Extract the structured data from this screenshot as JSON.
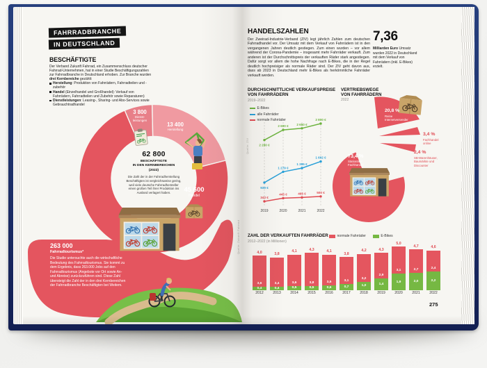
{
  "colors": {
    "coral": "#e4555f",
    "coral_light": "#f09aa1",
    "coral_mid": "#e87f88",
    "green": "#76b843",
    "blue": "#29a0d8",
    "red_accent": "#e04a52",
    "navy_cover": "#1e2f66",
    "page": "#f7f6f2"
  },
  "book": {
    "left_page": {
      "kicker_line1": "FAHRRADBRANCHE",
      "kicker_line2": "IN DEUTSCHLAND",
      "section_title": "BESCHÄFTIGTE",
      "intro_rich": [
        {
          "t": "Der Verband Zukunft Fahrrad, ein Zusammenschluss deutscher Fahrrad-Unternehmen, hat in einer Studie Beschäftigungszahlen zur Fahrradbranche in Deutschland erhoben. Zur Branche wurden "
        },
        {
          "t": "drei Kernbereiche",
          "b": true
        },
        {
          "t": " gezählt:"
        }
      ],
      "bullets": [
        {
          "lead": "Herstellung",
          "rest": ": Produktion von Fahrrädern, Fahrradteilen und -zubehör"
        },
        {
          "lead": "Handel",
          "rest": " (Einzelhandel und Großhandel): Verkauf von Fahrrädern, Fahrradteilen und Zubehör sowie Reparaturen)"
        },
        {
          "lead": "Dienstleistungen",
          "rest": ": Leasing-, Sharing- und Abo-Services sowie Gebrauchtradhandel"
        }
      ],
      "tourism_value": "263 000",
      "tourism_label": "Fahrradtourismus*",
      "tourism_text": "Die Studie untersuchte auch die wirtschaftliche Bedeutung des Fahrradtourismus. Sie kommt zu dem Ergebnis, dass 263.000 Jobs auf den Fahrradtourismus (Angebote vor Ort sowie An- und Abreise) zurückzuführen sind. Diese Zahl übersteigt die Zahl der in den drei Kernbereichen der Fahrradbranche Beschäftigten bei Weitem.",
      "source": "Quelle: Zukunft Fahrrad"
    },
    "right_page": {
      "section_title": "HANDELSZAHLEN",
      "intro": "Der Zweirad-Industrie-Verband (ZIV) legt jährlich Zahlen zum deutschen Fahrradhandel vor. Der Umsatz mit dem Verkauf von Fahrrädern ist in den vergangenen Jahren deutlich gestiegen. Zum einen wurden – vor allem während der Corona-Pandemie – insgesamt mehr Fahrräder verkauft. Zum anderen ist der Durchschnittspreis der verkauften Räder stark angestiegen. Dafür sorgt vor allem die hohe Nachfrage nach E-Bikes, die in der Regel deutlich hochpreisiger als normale Räder sind. Der ZIV geht davon aus, dass ab 2023 in Deutschland mehr E-Bikes als herkömmliche Fahrräder verkauft werden.",
      "revenue_value": "7,36",
      "revenue_rich": [
        {
          "t": "Milliarden Euro",
          "b": true
        },
        {
          "t": " Umsatz wurden 2022 in Deutschland mit dem Verkauf von Fahrrädern (inkl. E-Bikes) erzielt."
        }
      ],
      "source": "Quelle: ZIV",
      "folio": "275"
    }
  },
  "chart_data": [
    {
      "id": "employment",
      "type": "donut",
      "title": "Beschäftigte in den Kernbereichen (2022)",
      "center_value": "62 800",
      "center_label": "BESCHÄFTIGTE\nIN DEN KERNBEREICHEN\n(2022)",
      "note": "Die Zahl der in der Fahrradherstellung Beschäftigten ist vergleichsweise gering, weil viele deutsche Fahrradhersteller einen großen Teil ihrer Produktion ins Ausland verlagert haben.",
      "total": 62800,
      "start_angle": -23,
      "segments": [
        {
          "label": "Dienstleistungen",
          "display_label": "Dienst-\nleistungen",
          "value": 3800,
          "display": "3 800",
          "color": "#e87f88"
        },
        {
          "label": "Herstellung",
          "display_label": "Herstellung",
          "value": 13400,
          "display": "13 400",
          "color": "#f09aa1"
        },
        {
          "label": "Handel",
          "display_label": "Handel",
          "value": 45600,
          "display": "45 600",
          "color": "#e4555f"
        }
      ]
    },
    {
      "id": "prices",
      "type": "line",
      "title": "DURCHSCHNITTLICHE VERKAUFSPREISE\nVON FAHRRÄDERN",
      "subtitle": "2019–2022",
      "x": [
        "2019",
        "2020",
        "2021",
        "2022"
      ],
      "grid": "vertical-dashed",
      "ylim": [
        300,
        3000
      ],
      "series": [
        {
          "name": "E-Bikes",
          "color": "#6db33f",
          "values": [
            2280,
            2600,
            2650,
            2800
          ],
          "labels": [
            "2 280 €",
            "2 600 €",
            "2 650 €",
            "2 800 €"
          ]
        },
        {
          "name": "alle Fahrräder",
          "color": "#29a0d8",
          "values": [
            939,
            1279,
            1395,
            1602
          ],
          "labels": [
            "939 €",
            "1 279 €",
            "1 395 €",
            "1 602 €"
          ]
        },
        {
          "name": "normale Fahrräder",
          "color": "#e04a52",
          "values": [
            343,
            445,
            466,
            500
          ],
          "labels": [
            "343 €",
            "445 €",
            "466 €",
            "500 €"
          ]
        }
      ]
    },
    {
      "id": "channels",
      "type": "pie",
      "title": "VERTRIEBSWEGE\nVON FAHRRÄDERN",
      "subtitle": "2022",
      "slices": [
        {
          "label": "Stationärer\nFachhandel",
          "value": 73.4,
          "display": "73,4 %"
        },
        {
          "label": "Reine\nInternetversender",
          "value": 20.8,
          "display": "20,8 %"
        },
        {
          "label": "Fachhandel\nonline",
          "value": 3.4,
          "display": "3,4 %"
        },
        {
          "label": "SB-Warenhäuser,\nBaumärkte und\nDiscounter",
          "value": 2.4,
          "display": "2,4 %"
        }
      ]
    },
    {
      "id": "sales",
      "type": "bar",
      "title": "ZAHL DER VERKAUFTEN FAHRRÄDER",
      "subtitle": "2012–2022 (in Millionen)",
      "stacked": true,
      "categories": [
        "2012",
        "2013",
        "2014",
        "2015",
        "2016",
        "2017",
        "2018",
        "2019",
        "2020",
        "2021",
        "2022"
      ],
      "series": [
        {
          "name": "normale Fahrräder",
          "color": "#e4565f",
          "values": [
            3.6,
            3.4,
            3.6,
            3.8,
            3.5,
            3.1,
            3.2,
            2.9,
            3.1,
            2.7,
            2.4
          ]
        },
        {
          "name": "E-Bikes",
          "color": "#76b843",
          "values": [
            0.4,
            0.4,
            0.5,
            0.5,
            0.6,
            0.7,
            1.0,
            1.4,
            1.9,
            2.0,
            2.2
          ]
        }
      ],
      "totals": [
        4.0,
        3.8,
        4.1,
        4.3,
        4.1,
        3.8,
        4.2,
        4.3,
        5.0,
        4.7,
        4.6
      ]
    }
  ]
}
